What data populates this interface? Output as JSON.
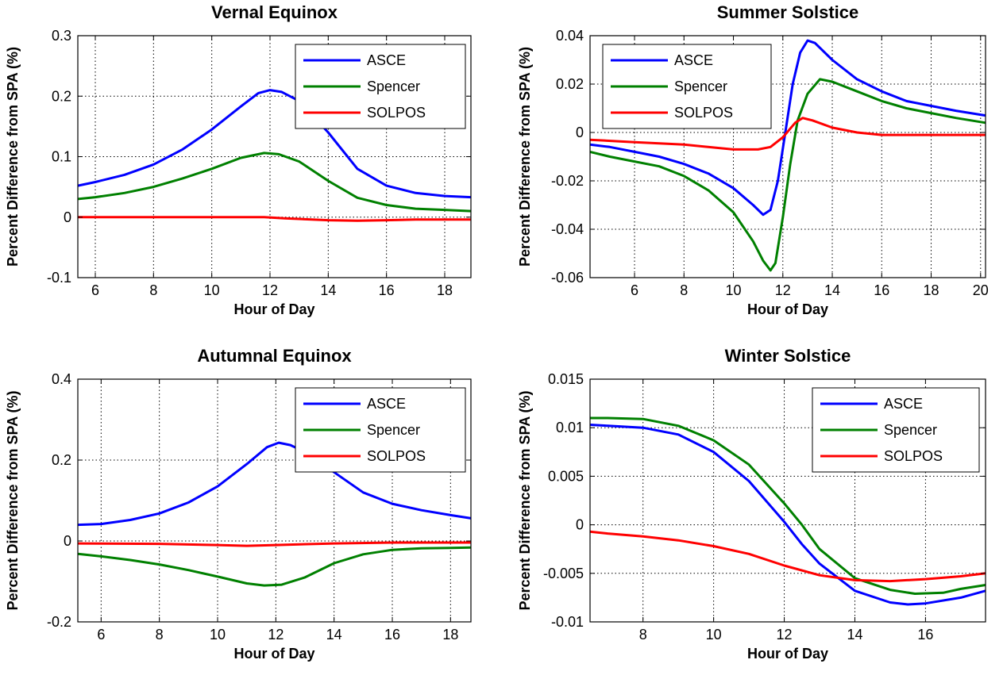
{
  "chart_data": [
    {
      "type": "line",
      "title": "Vernal Equinox",
      "xlabel": "Hour of Day",
      "ylabel": "Percent Difference from SPA (%)",
      "xlim": [
        5.4,
        18.9
      ],
      "ylim": [
        -0.1,
        0.3
      ],
      "xticks": [
        6,
        8,
        10,
        12,
        14,
        16,
        18
      ],
      "yticks": [
        -0.1,
        0,
        0.1,
        0.2,
        0.3
      ],
      "ytick_labels": [
        "-0.1",
        "0",
        "0.1",
        "0.2",
        "0.3"
      ],
      "grid": true,
      "legend": "top-right",
      "series": [
        {
          "name": "ASCE",
          "color": "#0000ff",
          "points": [
            [
              5.4,
              0.052
            ],
            [
              6,
              0.058
            ],
            [
              7,
              0.07
            ],
            [
              8,
              0.087
            ],
            [
              9,
              0.112
            ],
            [
              10,
              0.145
            ],
            [
              11,
              0.183
            ],
            [
              11.6,
              0.205
            ],
            [
              12,
              0.21
            ],
            [
              12.4,
              0.207
            ],
            [
              13,
              0.192
            ],
            [
              14,
              0.14
            ],
            [
              15,
              0.08
            ],
            [
              16,
              0.052
            ],
            [
              17,
              0.04
            ],
            [
              18,
              0.035
            ],
            [
              18.9,
              0.033
            ]
          ]
        },
        {
          "name": "Spencer",
          "color": "#008000",
          "points": [
            [
              5.4,
              0.03
            ],
            [
              6,
              0.033
            ],
            [
              7,
              0.04
            ],
            [
              8,
              0.05
            ],
            [
              9,
              0.064
            ],
            [
              10,
              0.08
            ],
            [
              11,
              0.098
            ],
            [
              11.8,
              0.106
            ],
            [
              12.3,
              0.104
            ],
            [
              13,
              0.092
            ],
            [
              14,
              0.06
            ],
            [
              15,
              0.032
            ],
            [
              16,
              0.02
            ],
            [
              17,
              0.014
            ],
            [
              18,
              0.012
            ],
            [
              18.9,
              0.01
            ]
          ]
        },
        {
          "name": "SOLPOS",
          "color": "#ff0000",
          "points": [
            [
              5.4,
              0.0
            ],
            [
              11.8,
              0.0
            ],
            [
              12.5,
              -0.002
            ],
            [
              14,
              -0.005
            ],
            [
              15,
              -0.006
            ],
            [
              16,
              -0.005
            ],
            [
              17,
              -0.004
            ],
            [
              18.9,
              -0.004
            ]
          ]
        }
      ]
    },
    {
      "type": "line",
      "title": "Summer Solstice",
      "xlabel": "Hour of Day",
      "ylabel": "Percent Difference from SPA (%)",
      "xlim": [
        4.2,
        20.2
      ],
      "ylim": [
        -0.06,
        0.04
      ],
      "xticks": [
        6,
        8,
        10,
        12,
        14,
        16,
        18,
        20
      ],
      "yticks": [
        -0.06,
        -0.04,
        -0.02,
        0,
        0.02,
        0.04
      ],
      "ytick_labels": [
        "-0.06",
        "-0.04",
        "-0.02",
        "0",
        "0.02",
        "0.04"
      ],
      "grid": true,
      "legend": "top-left",
      "series": [
        {
          "name": "ASCE",
          "color": "#0000ff",
          "points": [
            [
              4.2,
              -0.005
            ],
            [
              5,
              -0.006
            ],
            [
              6,
              -0.008
            ],
            [
              7,
              -0.01
            ],
            [
              8,
              -0.013
            ],
            [
              9,
              -0.017
            ],
            [
              10,
              -0.023
            ],
            [
              10.8,
              -0.03
            ],
            [
              11.2,
              -0.034
            ],
            [
              11.5,
              -0.032
            ],
            [
              11.8,
              -0.02
            ],
            [
              12.1,
              0.0
            ],
            [
              12.4,
              0.02
            ],
            [
              12.7,
              0.033
            ],
            [
              13,
              0.038
            ],
            [
              13.3,
              0.037
            ],
            [
              14,
              0.03
            ],
            [
              15,
              0.022
            ],
            [
              16,
              0.017
            ],
            [
              17,
              0.013
            ],
            [
              18,
              0.011
            ],
            [
              19,
              0.009
            ],
            [
              20.2,
              0.007
            ]
          ]
        },
        {
          "name": "Spencer",
          "color": "#008000",
          "points": [
            [
              4.2,
              -0.008
            ],
            [
              5,
              -0.01
            ],
            [
              6,
              -0.012
            ],
            [
              7,
              -0.014
            ],
            [
              8,
              -0.018
            ],
            [
              9,
              -0.024
            ],
            [
              10,
              -0.033
            ],
            [
              10.8,
              -0.045
            ],
            [
              11.2,
              -0.053
            ],
            [
              11.5,
              -0.057
            ],
            [
              11.7,
              -0.054
            ],
            [
              12,
              -0.035
            ],
            [
              12.3,
              -0.013
            ],
            [
              12.6,
              0.005
            ],
            [
              13,
              0.016
            ],
            [
              13.5,
              0.022
            ],
            [
              14,
              0.021
            ],
            [
              15,
              0.017
            ],
            [
              16,
              0.013
            ],
            [
              17,
              0.01
            ],
            [
              18,
              0.008
            ],
            [
              19,
              0.006
            ],
            [
              20.2,
              0.004
            ]
          ]
        },
        {
          "name": "SOLPOS",
          "color": "#ff0000",
          "points": [
            [
              4.2,
              -0.003
            ],
            [
              6,
              -0.004
            ],
            [
              8,
              -0.005
            ],
            [
              10,
              -0.007
            ],
            [
              11,
              -0.007
            ],
            [
              11.5,
              -0.006
            ],
            [
              12,
              -0.002
            ],
            [
              12.5,
              0.004
            ],
            [
              12.8,
              0.006
            ],
            [
              13.2,
              0.005
            ],
            [
              14,
              0.002
            ],
            [
              15,
              0.0
            ],
            [
              16,
              -0.001
            ],
            [
              18,
              -0.001
            ],
            [
              20.2,
              -0.001
            ]
          ]
        }
      ]
    },
    {
      "type": "line",
      "title": "Autumnal Equinox",
      "xlabel": "Hour of Day",
      "ylabel": "Percent Difference from SPA (%)",
      "xlim": [
        5.2,
        18.7
      ],
      "ylim": [
        -0.2,
        0.4
      ],
      "xticks": [
        6,
        8,
        10,
        12,
        14,
        16,
        18
      ],
      "yticks": [
        -0.2,
        0,
        0.2,
        0.4
      ],
      "ytick_labels": [
        "-0.2",
        "0",
        "0.2",
        "0.4"
      ],
      "grid": true,
      "legend": "top-right",
      "series": [
        {
          "name": "ASCE",
          "color": "#0000ff",
          "points": [
            [
              5.2,
              0.04
            ],
            [
              6,
              0.042
            ],
            [
              7,
              0.052
            ],
            [
              8,
              0.068
            ],
            [
              9,
              0.095
            ],
            [
              10,
              0.135
            ],
            [
              11,
              0.19
            ],
            [
              11.7,
              0.232
            ],
            [
              12.1,
              0.243
            ],
            [
              12.5,
              0.237
            ],
            [
              13,
              0.22
            ],
            [
              14,
              0.17
            ],
            [
              15,
              0.12
            ],
            [
              16,
              0.092
            ],
            [
              17,
              0.076
            ],
            [
              18,
              0.064
            ],
            [
              18.7,
              0.056
            ]
          ]
        },
        {
          "name": "Spencer",
          "color": "#008000",
          "points": [
            [
              5.2,
              -0.032
            ],
            [
              6,
              -0.038
            ],
            [
              7,
              -0.047
            ],
            [
              8,
              -0.058
            ],
            [
              9,
              -0.072
            ],
            [
              10,
              -0.088
            ],
            [
              11,
              -0.105
            ],
            [
              11.6,
              -0.11
            ],
            [
              12.2,
              -0.108
            ],
            [
              13,
              -0.09
            ],
            [
              14,
              -0.055
            ],
            [
              15,
              -0.033
            ],
            [
              16,
              -0.022
            ],
            [
              17,
              -0.018
            ],
            [
              18,
              -0.017
            ],
            [
              18.7,
              -0.016
            ]
          ]
        },
        {
          "name": "SOLPOS",
          "color": "#ff0000",
          "points": [
            [
              5.2,
              -0.006
            ],
            [
              8,
              -0.007
            ],
            [
              10,
              -0.01
            ],
            [
              11,
              -0.012
            ],
            [
              12,
              -0.01
            ],
            [
              14,
              -0.006
            ],
            [
              16,
              -0.004
            ],
            [
              18.7,
              -0.004
            ]
          ]
        }
      ]
    },
    {
      "type": "line",
      "title": "Winter Solstice",
      "xlabel": "Hour of Day",
      "ylabel": "Percent Difference from SPA (%)",
      "xlim": [
        6.5,
        17.7
      ],
      "ylim": [
        -0.01,
        0.015
      ],
      "xticks": [
        8,
        10,
        12,
        14,
        16
      ],
      "yticks": [
        -0.01,
        -0.005,
        0,
        0.005,
        0.01,
        0.015
      ],
      "ytick_labels": [
        "-0.01",
        "-0.005",
        "0",
        "0.005",
        "0.01",
        "0.015"
      ],
      "grid": true,
      "legend": "top-right",
      "series": [
        {
          "name": "ASCE",
          "color": "#0000ff",
          "points": [
            [
              6.5,
              0.0103
            ],
            [
              7,
              0.0102
            ],
            [
              8,
              0.01
            ],
            [
              9,
              0.0093
            ],
            [
              10,
              0.0075
            ],
            [
              11,
              0.0045
            ],
            [
              12,
              0.0003
            ],
            [
              12.5,
              -0.002
            ],
            [
              13,
              -0.004
            ],
            [
              14,
              -0.0068
            ],
            [
              15,
              -0.008
            ],
            [
              15.5,
              -0.0082
            ],
            [
              16,
              -0.0081
            ],
            [
              17,
              -0.0075
            ],
            [
              17.7,
              -0.0068
            ]
          ]
        },
        {
          "name": "Spencer",
          "color": "#008000",
          "points": [
            [
              6.5,
              0.011
            ],
            [
              7,
              0.011
            ],
            [
              8,
              0.0109
            ],
            [
              9,
              0.0102
            ],
            [
              10,
              0.0087
            ],
            [
              11,
              0.0062
            ],
            [
              12,
              0.0022
            ],
            [
              12.5,
              0.0
            ],
            [
              13,
              -0.0025
            ],
            [
              14,
              -0.0055
            ],
            [
              15,
              -0.0067
            ],
            [
              15.7,
              -0.0071
            ],
            [
              16.5,
              -0.007
            ],
            [
              17,
              -0.0066
            ],
            [
              17.7,
              -0.0062
            ]
          ]
        },
        {
          "name": "SOLPOS",
          "color": "#ff0000",
          "points": [
            [
              6.5,
              -0.0007
            ],
            [
              7,
              -0.0009
            ],
            [
              8,
              -0.0012
            ],
            [
              9,
              -0.0016
            ],
            [
              10,
              -0.0022
            ],
            [
              11,
              -0.003
            ],
            [
              12,
              -0.0042
            ],
            [
              13,
              -0.0052
            ],
            [
              14,
              -0.0057
            ],
            [
              15,
              -0.0058
            ],
            [
              16,
              -0.0056
            ],
            [
              17,
              -0.0053
            ],
            [
              17.7,
              -0.005
            ]
          ]
        }
      ]
    }
  ]
}
